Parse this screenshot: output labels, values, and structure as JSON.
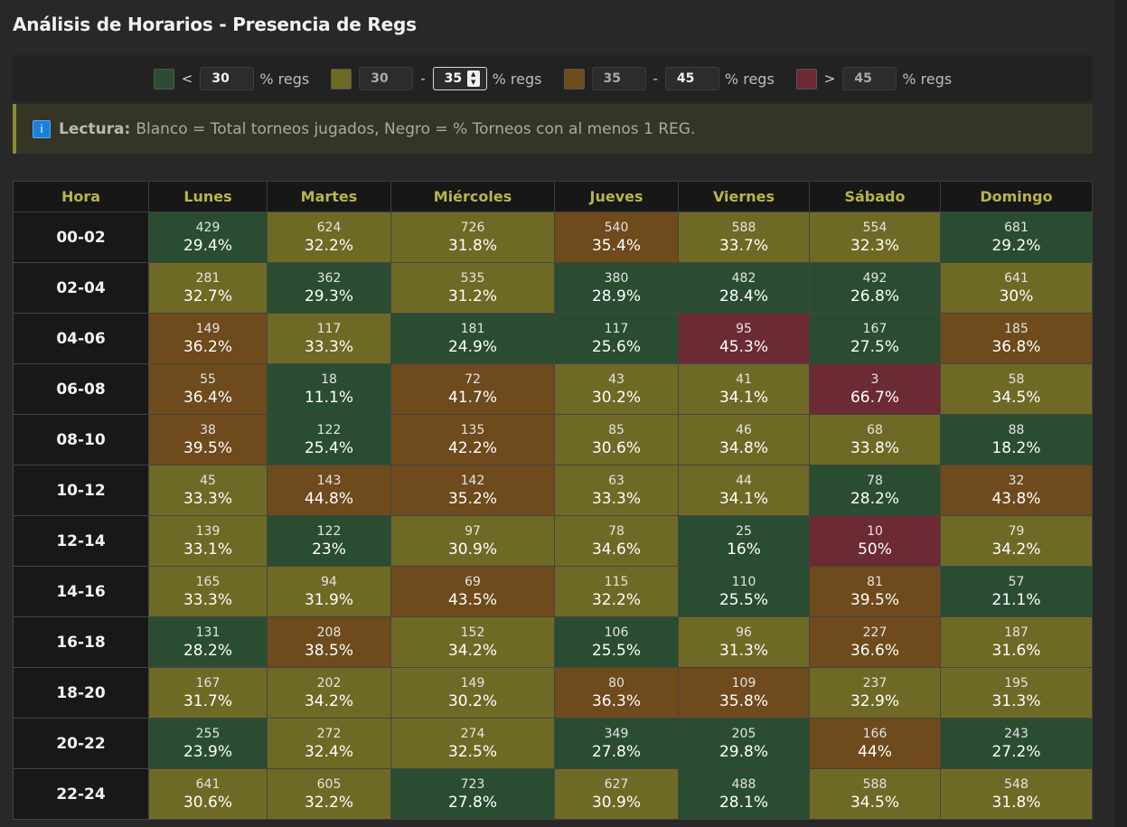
{
  "title": "Análisis de Horarios - Presencia de Regs",
  "colors": {
    "green": "#2a4d32",
    "olive": "#6e6a25",
    "brown": "#6e4a1c",
    "red": "#6b2a34"
  },
  "legend": {
    "green": {
      "symbol": "<",
      "value": "30",
      "unit": "% regs"
    },
    "olive": {
      "from": "30",
      "dash": "-",
      "to": "35",
      "unit": "% regs"
    },
    "brown": {
      "from": "35",
      "dash": "-",
      "to": "45",
      "unit": "% regs"
    },
    "red": {
      "symbol": ">",
      "value": "45",
      "unit": "% regs"
    }
  },
  "info": {
    "icon": "info-icon",
    "icon_glyph": "i",
    "label": "Lectura:",
    "text": "Blanco = Total torneos jugados, Negro = % Torneos con al menos 1 REG."
  },
  "table": {
    "headers": [
      "Hora",
      "Lunes",
      "Martes",
      "Miércoles",
      "Jueves",
      "Viernes",
      "Sábado",
      "Domingo"
    ],
    "rows": [
      {
        "hour": "00-02",
        "cells": [
          {
            "count": "429",
            "pct": "29.4%",
            "color": "green"
          },
          {
            "count": "624",
            "pct": "32.2%",
            "color": "olive"
          },
          {
            "count": "726",
            "pct": "31.8%",
            "color": "olive"
          },
          {
            "count": "540",
            "pct": "35.4%",
            "color": "brown"
          },
          {
            "count": "588",
            "pct": "33.7%",
            "color": "olive"
          },
          {
            "count": "554",
            "pct": "32.3%",
            "color": "olive"
          },
          {
            "count": "681",
            "pct": "29.2%",
            "color": "green"
          }
        ]
      },
      {
        "hour": "02-04",
        "cells": [
          {
            "count": "281",
            "pct": "32.7%",
            "color": "olive"
          },
          {
            "count": "362",
            "pct": "29.3%",
            "color": "green"
          },
          {
            "count": "535",
            "pct": "31.2%",
            "color": "olive"
          },
          {
            "count": "380",
            "pct": "28.9%",
            "color": "green"
          },
          {
            "count": "482",
            "pct": "28.4%",
            "color": "green"
          },
          {
            "count": "492",
            "pct": "26.8%",
            "color": "green"
          },
          {
            "count": "641",
            "pct": "30%",
            "color": "olive"
          }
        ]
      },
      {
        "hour": "04-06",
        "cells": [
          {
            "count": "149",
            "pct": "36.2%",
            "color": "brown"
          },
          {
            "count": "117",
            "pct": "33.3%",
            "color": "olive"
          },
          {
            "count": "181",
            "pct": "24.9%",
            "color": "green"
          },
          {
            "count": "117",
            "pct": "25.6%",
            "color": "green"
          },
          {
            "count": "95",
            "pct": "45.3%",
            "color": "red"
          },
          {
            "count": "167",
            "pct": "27.5%",
            "color": "green"
          },
          {
            "count": "185",
            "pct": "36.8%",
            "color": "brown"
          }
        ]
      },
      {
        "hour": "06-08",
        "cells": [
          {
            "count": "55",
            "pct": "36.4%",
            "color": "brown"
          },
          {
            "count": "18",
            "pct": "11.1%",
            "color": "green"
          },
          {
            "count": "72",
            "pct": "41.7%",
            "color": "brown"
          },
          {
            "count": "43",
            "pct": "30.2%",
            "color": "olive"
          },
          {
            "count": "41",
            "pct": "34.1%",
            "color": "olive"
          },
          {
            "count": "3",
            "pct": "66.7%",
            "color": "red"
          },
          {
            "count": "58",
            "pct": "34.5%",
            "color": "olive"
          }
        ]
      },
      {
        "hour": "08-10",
        "cells": [
          {
            "count": "38",
            "pct": "39.5%",
            "color": "brown"
          },
          {
            "count": "122",
            "pct": "25.4%",
            "color": "green"
          },
          {
            "count": "135",
            "pct": "42.2%",
            "color": "brown"
          },
          {
            "count": "85",
            "pct": "30.6%",
            "color": "olive"
          },
          {
            "count": "46",
            "pct": "34.8%",
            "color": "olive"
          },
          {
            "count": "68",
            "pct": "33.8%",
            "color": "olive"
          },
          {
            "count": "88",
            "pct": "18.2%",
            "color": "green"
          }
        ]
      },
      {
        "hour": "10-12",
        "cells": [
          {
            "count": "45",
            "pct": "33.3%",
            "color": "olive"
          },
          {
            "count": "143",
            "pct": "44.8%",
            "color": "brown"
          },
          {
            "count": "142",
            "pct": "35.2%",
            "color": "brown"
          },
          {
            "count": "63",
            "pct": "33.3%",
            "color": "olive"
          },
          {
            "count": "44",
            "pct": "34.1%",
            "color": "olive"
          },
          {
            "count": "78",
            "pct": "28.2%",
            "color": "green"
          },
          {
            "count": "32",
            "pct": "43.8%",
            "color": "brown"
          }
        ]
      },
      {
        "hour": "12-14",
        "cells": [
          {
            "count": "139",
            "pct": "33.1%",
            "color": "olive"
          },
          {
            "count": "122",
            "pct": "23%",
            "color": "green"
          },
          {
            "count": "97",
            "pct": "30.9%",
            "color": "olive"
          },
          {
            "count": "78",
            "pct": "34.6%",
            "color": "olive"
          },
          {
            "count": "25",
            "pct": "16%",
            "color": "green"
          },
          {
            "count": "10",
            "pct": "50%",
            "color": "red"
          },
          {
            "count": "79",
            "pct": "34.2%",
            "color": "olive"
          }
        ]
      },
      {
        "hour": "14-16",
        "cells": [
          {
            "count": "165",
            "pct": "33.3%",
            "color": "olive"
          },
          {
            "count": "94",
            "pct": "31.9%",
            "color": "olive"
          },
          {
            "count": "69",
            "pct": "43.5%",
            "color": "brown"
          },
          {
            "count": "115",
            "pct": "32.2%",
            "color": "olive"
          },
          {
            "count": "110",
            "pct": "25.5%",
            "color": "green"
          },
          {
            "count": "81",
            "pct": "39.5%",
            "color": "brown"
          },
          {
            "count": "57",
            "pct": "21.1%",
            "color": "green"
          }
        ]
      },
      {
        "hour": "16-18",
        "cells": [
          {
            "count": "131",
            "pct": "28.2%",
            "color": "green"
          },
          {
            "count": "208",
            "pct": "38.5%",
            "color": "brown"
          },
          {
            "count": "152",
            "pct": "34.2%",
            "color": "olive"
          },
          {
            "count": "106",
            "pct": "25.5%",
            "color": "green"
          },
          {
            "count": "96",
            "pct": "31.3%",
            "color": "olive"
          },
          {
            "count": "227",
            "pct": "36.6%",
            "color": "brown"
          },
          {
            "count": "187",
            "pct": "31.6%",
            "color": "olive"
          }
        ]
      },
      {
        "hour": "18-20",
        "cells": [
          {
            "count": "167",
            "pct": "31.7%",
            "color": "olive"
          },
          {
            "count": "202",
            "pct": "34.2%",
            "color": "olive"
          },
          {
            "count": "149",
            "pct": "30.2%",
            "color": "olive"
          },
          {
            "count": "80",
            "pct": "36.3%",
            "color": "brown"
          },
          {
            "count": "109",
            "pct": "35.8%",
            "color": "brown"
          },
          {
            "count": "237",
            "pct": "32.9%",
            "color": "olive"
          },
          {
            "count": "195",
            "pct": "31.3%",
            "color": "olive"
          }
        ]
      },
      {
        "hour": "20-22",
        "cells": [
          {
            "count": "255",
            "pct": "23.9%",
            "color": "green"
          },
          {
            "count": "272",
            "pct": "32.4%",
            "color": "olive"
          },
          {
            "count": "274",
            "pct": "32.5%",
            "color": "olive"
          },
          {
            "count": "349",
            "pct": "27.8%",
            "color": "green"
          },
          {
            "count": "205",
            "pct": "29.8%",
            "color": "green"
          },
          {
            "count": "166",
            "pct": "44%",
            "color": "brown"
          },
          {
            "count": "243",
            "pct": "27.2%",
            "color": "green"
          }
        ]
      },
      {
        "hour": "22-24",
        "cells": [
          {
            "count": "641",
            "pct": "30.6%",
            "color": "olive"
          },
          {
            "count": "605",
            "pct": "32.2%",
            "color": "olive"
          },
          {
            "count": "723",
            "pct": "27.8%",
            "color": "green"
          },
          {
            "count": "627",
            "pct": "30.9%",
            "color": "olive"
          },
          {
            "count": "488",
            "pct": "28.1%",
            "color": "green"
          },
          {
            "count": "588",
            "pct": "34.5%",
            "color": "olive"
          },
          {
            "count": "548",
            "pct": "31.8%",
            "color": "olive"
          }
        ]
      }
    ]
  }
}
